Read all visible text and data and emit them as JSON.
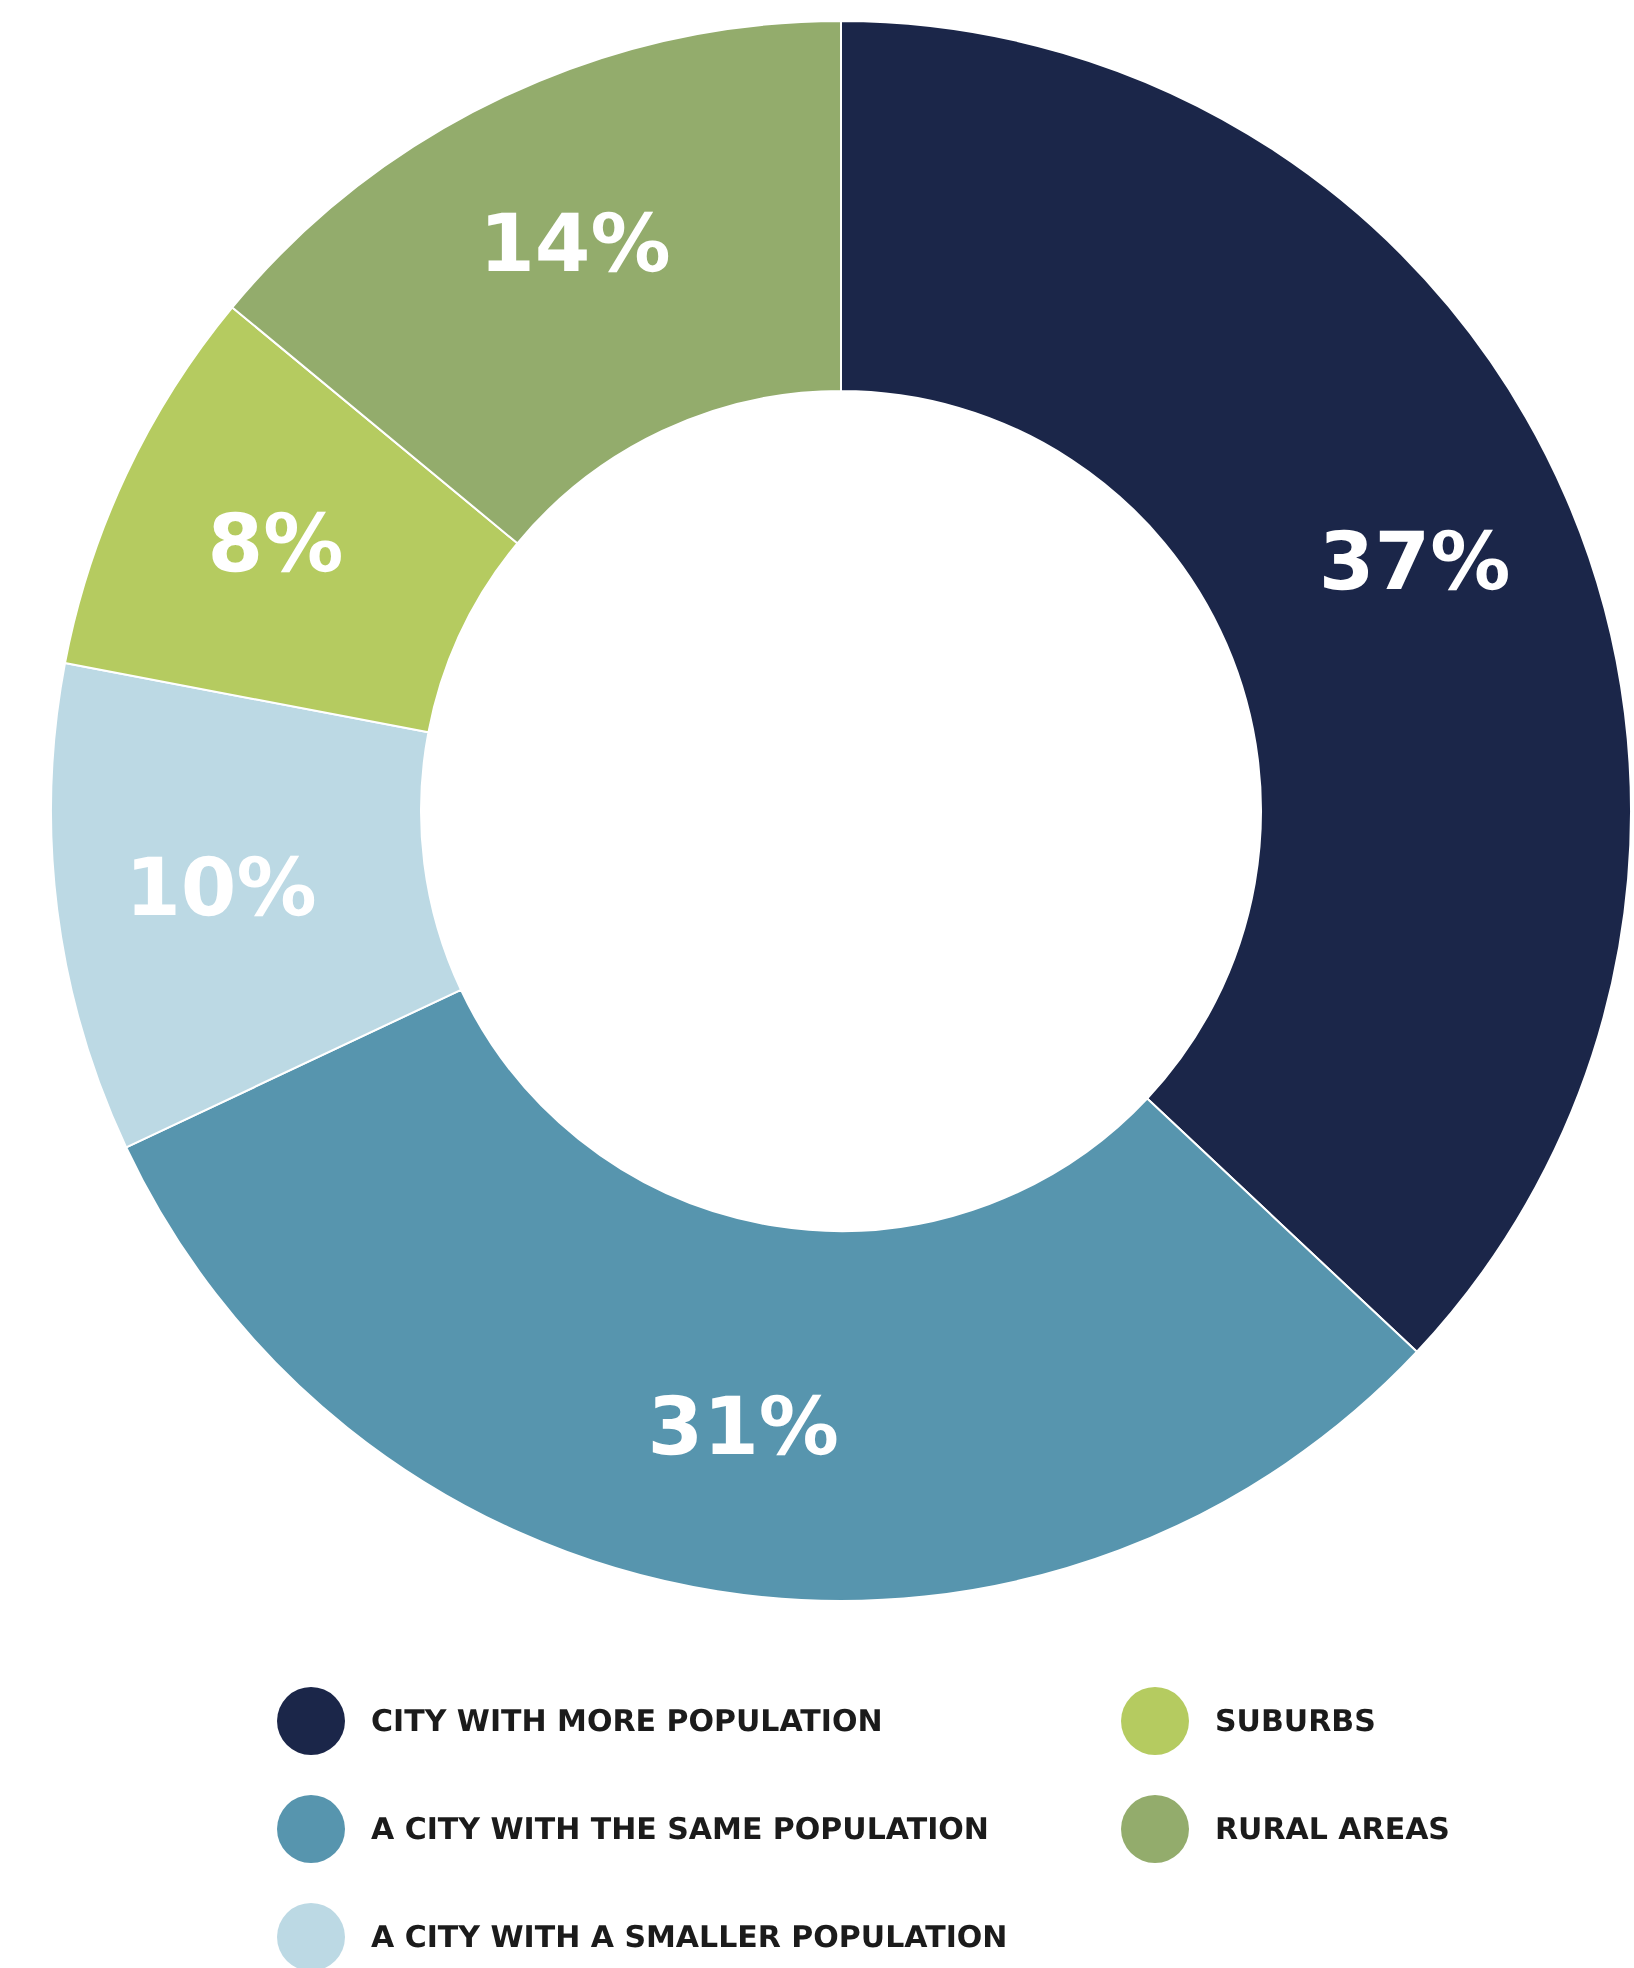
{
  "chart_data": {
    "type": "donut",
    "categories": [
      "CITY WITH MORE POPULATION",
      "A CITY WITH THE SAME POPULATION",
      "A CITY WITH A SMALLER POPULATION",
      "SUBURBS",
      "RURAL AREAS"
    ],
    "values": [
      37,
      31,
      10,
      8,
      14
    ],
    "colors": [
      "#1b2649",
      "#5795ae",
      "#bcd9e4",
      "#b5cb60",
      "#93ac6c"
    ],
    "value_labels": [
      "37%",
      "31%",
      "10%",
      "8%",
      "14%"
    ],
    "legend": "bottom"
  }
}
